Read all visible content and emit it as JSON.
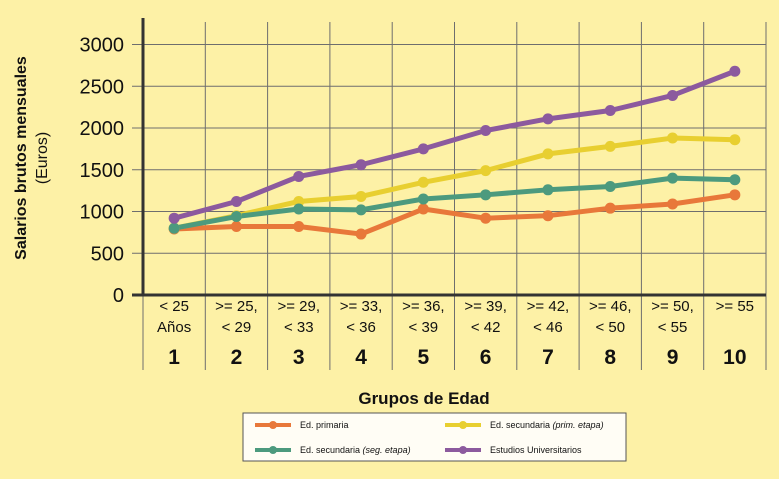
{
  "chart_data": {
    "type": "line",
    "title": "",
    "xlabel": "Grupos de Edad",
    "ylabel": "Salarios brutos mensuales",
    "ylabel_unit": "(Euros)",
    "ylim": [
      0,
      3000
    ],
    "yticks": [
      "0",
      "500",
      "1000",
      "1500",
      "2000",
      "2500",
      "3000"
    ],
    "grid": true,
    "legend_position": "bottom",
    "categories": [
      {
        "range_line1": "< 25",
        "range_line2": "Años",
        "number": "1"
      },
      {
        "range_line1": ">= 25,",
        "range_line2": "< 29",
        "number": "2"
      },
      {
        "range_line1": ">= 29,",
        "range_line2": "< 33",
        "number": "3"
      },
      {
        "range_line1": ">= 33,",
        "range_line2": "< 36",
        "number": "4"
      },
      {
        "range_line1": ">= 36,",
        "range_line2": "< 39",
        "number": "5"
      },
      {
        "range_line1": ">= 39,",
        "range_line2": "< 42",
        "number": "6"
      },
      {
        "range_line1": ">= 42,",
        "range_line2": "< 46",
        "number": "7"
      },
      {
        "range_line1": ">= 46,",
        "range_line2": "< 50",
        "number": "8"
      },
      {
        "range_line1": ">= 50,",
        "range_line2": "< 55",
        "number": "9"
      },
      {
        "range_line1": ">= 55",
        "range_line2": "",
        "number": "10"
      }
    ],
    "series": [
      {
        "name": "Ed. primaria",
        "name_note": "",
        "color": "#e8783a",
        "values": [
          790,
          820,
          820,
          730,
          1030,
          920,
          950,
          1040,
          1090,
          1200
        ]
      },
      {
        "name": "Ed. secundaria",
        "name_note": "(prim. etapa)",
        "color": "#e8cf30",
        "values": [
          800,
          950,
          1120,
          1180,
          1350,
          1490,
          1690,
          1780,
          1880,
          1860
        ]
      },
      {
        "name": "Ed. secundaria",
        "name_note": "(seg. etapa)",
        "color": "#4c9a7e",
        "values": [
          800,
          940,
          1030,
          1020,
          1150,
          1200,
          1260,
          1300,
          1400,
          1380
        ]
      },
      {
        "name": "Estudios Universitarios",
        "name_note": "",
        "color": "#8c5a9e",
        "values": [
          920,
          1120,
          1420,
          1560,
          1750,
          1970,
          2110,
          2210,
          2390,
          2680
        ]
      }
    ]
  }
}
